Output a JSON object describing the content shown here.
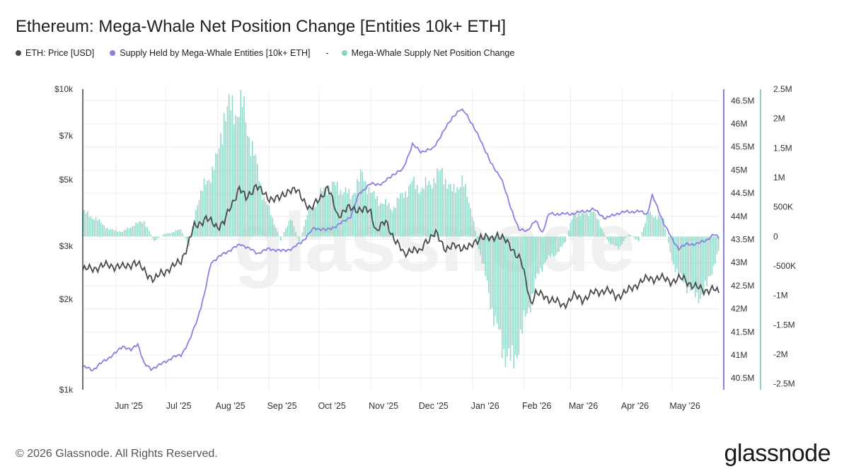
{
  "title": "Ethereum: Mega-Whale Net Position Change [Entities 10k+ ETH]",
  "legend": [
    {
      "label": "ETH: Price [USD]",
      "color": "#4a4a4a"
    },
    {
      "label": "Supply Held by Mega-Whale Entities [10k+ ETH]",
      "color": "#8b7fe0"
    },
    {
      "label": "Mega-Whale Supply Net Position Change",
      "color": "#86d6c4"
    }
  ],
  "legend_dash": "-",
  "footer": "© 2026 Glassnode. All Rights Reserved.",
  "brand": "glassnode",
  "watermark": "glassnode",
  "chart_data": {
    "type": "line",
    "x_ticks": [
      "Jun '25",
      "Jul '25",
      "Aug '25",
      "Sep '25",
      "Oct '25",
      "Nov '25",
      "Dec '25",
      "Jan '26",
      "Feb '26",
      "Mar '26",
      "Apr '26",
      "May '26"
    ],
    "y_left": {
      "scale": "log",
      "range": [
        1000,
        10000
      ],
      "ticks": [
        1000,
        2000,
        3000,
        5000,
        7000,
        10000
      ],
      "tick_labels": [
        "$1k",
        "$2k",
        "$3k",
        "$5k",
        "$7k",
        "$10k"
      ]
    },
    "y_right1": {
      "range": [
        40250000,
        46750000
      ],
      "ticks": [
        40500000,
        41000000,
        41500000,
        42000000,
        42500000,
        43000000,
        43500000,
        44000000,
        44500000,
        45000000,
        45500000,
        46000000,
        46500000
      ],
      "tick_labels": [
        "40.5M",
        "41M",
        "41.5M",
        "42M",
        "42.5M",
        "43M",
        "43.5M",
        "44M",
        "44.5M",
        "45M",
        "45.5M",
        "46M",
        "46.5M"
      ]
    },
    "y_right2": {
      "range": [
        -2600000,
        2500000
      ],
      "ticks": [
        -2500000,
        -2000000,
        -1500000,
        -1000000,
        -500000,
        0,
        500000,
        1000000,
        1500000,
        2000000,
        2500000
      ],
      "tick_labels": [
        "-2.5M",
        "-2M",
        "-1.5M",
        "-1M",
        "-500K",
        "0",
        "500K",
        "1M",
        "1.5M",
        "2M",
        "2.5M"
      ]
    },
    "x_domain": {
      "start": "2025-05-12",
      "end": "2026-05-29",
      "tick_dates": [
        "2025-06-01",
        "2025-07-01",
        "2025-08-01",
        "2025-09-01",
        "2025-10-01",
        "2025-11-01",
        "2025-12-01",
        "2026-01-01",
        "2026-02-01",
        "2026-03-01",
        "2026-04-01",
        "2026-05-01"
      ]
    },
    "grid": true,
    "legend_position": "top-left",
    "series": [
      {
        "name": "ETH: Price [USD]",
        "axis": "left",
        "style": "line",
        "color": "#4a4a4a",
        "points": [
          [
            "2025-05-12",
            2500
          ],
          [
            "2025-05-20",
            2550
          ],
          [
            "2025-05-28",
            2600
          ],
          [
            "2025-06-05",
            2550
          ],
          [
            "2025-06-12",
            2650
          ],
          [
            "2025-06-18",
            2500
          ],
          [
            "2025-06-24",
            2300
          ],
          [
            "2025-06-28",
            2450
          ],
          [
            "2025-07-05",
            2550
          ],
          [
            "2025-07-10",
            2700
          ],
          [
            "2025-07-14",
            3000
          ],
          [
            "2025-07-18",
            3500
          ],
          [
            "2025-07-25",
            3700
          ],
          [
            "2025-08-01",
            3500
          ],
          [
            "2025-08-05",
            3600
          ],
          [
            "2025-08-10",
            4200
          ],
          [
            "2025-08-14",
            4700
          ],
          [
            "2025-08-18",
            4300
          ],
          [
            "2025-08-24",
            4800
          ],
          [
            "2025-08-28",
            4500
          ],
          [
            "2025-09-01",
            4350
          ],
          [
            "2025-09-07",
            4300
          ],
          [
            "2025-09-13",
            4650
          ],
          [
            "2025-09-18",
            4550
          ],
          [
            "2025-09-23",
            4200
          ],
          [
            "2025-09-26",
            3950
          ],
          [
            "2025-10-02",
            4400
          ],
          [
            "2025-10-06",
            4700
          ],
          [
            "2025-10-10",
            4100
          ],
          [
            "2025-10-12",
            3800
          ],
          [
            "2025-10-18",
            4000
          ],
          [
            "2025-10-25",
            4000
          ],
          [
            "2025-11-01",
            3900
          ],
          [
            "2025-11-04",
            3400
          ],
          [
            "2025-11-10",
            3600
          ],
          [
            "2025-11-15",
            3200
          ],
          [
            "2025-11-21",
            2800
          ],
          [
            "2025-11-25",
            2950
          ],
          [
            "2025-12-01",
            2850
          ],
          [
            "2025-12-03",
            3100
          ],
          [
            "2025-12-10",
            3300
          ],
          [
            "2025-12-16",
            2950
          ],
          [
            "2025-12-22",
            3000
          ],
          [
            "2025-12-31",
            2970
          ],
          [
            "2026-01-06",
            3250
          ],
          [
            "2026-01-12",
            3150
          ],
          [
            "2026-01-16",
            3300
          ],
          [
            "2026-01-20",
            3150
          ],
          [
            "2026-01-25",
            2950
          ],
          [
            "2026-01-30",
            2700
          ],
          [
            "2026-02-02",
            2300
          ],
          [
            "2026-02-05",
            1950
          ],
          [
            "2026-02-08",
            2100
          ],
          [
            "2026-02-12",
            2050
          ],
          [
            "2026-02-18",
            2000
          ],
          [
            "2026-02-24",
            1900
          ],
          [
            "2026-03-03",
            2050
          ],
          [
            "2026-03-08",
            2000
          ],
          [
            "2026-03-15",
            2100
          ],
          [
            "2026-03-22",
            2150
          ],
          [
            "2026-03-28",
            2050
          ],
          [
            "2026-04-03",
            2100
          ],
          [
            "2026-04-10",
            2250
          ],
          [
            "2026-04-17",
            2350
          ],
          [
            "2026-04-24",
            2350
          ],
          [
            "2026-05-01",
            2300
          ],
          [
            "2026-05-08",
            2350
          ],
          [
            "2026-05-14",
            2200
          ],
          [
            "2026-05-20",
            2150
          ],
          [
            "2026-05-26",
            2150
          ],
          [
            "2026-05-29",
            2100
          ]
        ]
      },
      {
        "name": "Supply Held by Mega-Whale Entities [10k+ ETH]",
        "axis": "right1",
        "style": "line",
        "color": "#8b7fe0",
        "points": [
          [
            "2025-05-12",
            40750000
          ],
          [
            "2025-05-18",
            40680000
          ],
          [
            "2025-05-24",
            40850000
          ],
          [
            "2025-06-01",
            41050000
          ],
          [
            "2025-06-05",
            41200000
          ],
          [
            "2025-06-10",
            41100000
          ],
          [
            "2025-06-14",
            41250000
          ],
          [
            "2025-06-18",
            40800000
          ],
          [
            "2025-06-22",
            40700000
          ],
          [
            "2025-06-28",
            40800000
          ],
          [
            "2025-07-05",
            40950000
          ],
          [
            "2025-07-10",
            41000000
          ],
          [
            "2025-07-15",
            41300000
          ],
          [
            "2025-07-20",
            41800000
          ],
          [
            "2025-07-24",
            42300000
          ],
          [
            "2025-07-28",
            43000000
          ],
          [
            "2025-08-05",
            43200000
          ],
          [
            "2025-08-15",
            43400000
          ],
          [
            "2025-08-25",
            43200000
          ],
          [
            "2025-09-01",
            43300000
          ],
          [
            "2025-09-08",
            43250000
          ],
          [
            "2025-09-15",
            43300000
          ],
          [
            "2025-09-22",
            43500000
          ],
          [
            "2025-09-28",
            43750000
          ],
          [
            "2025-10-05",
            43700000
          ],
          [
            "2025-10-12",
            43800000
          ],
          [
            "2025-10-20",
            44000000
          ],
          [
            "2025-10-25",
            44500000
          ],
          [
            "2025-11-01",
            44700000
          ],
          [
            "2025-11-08",
            44700000
          ],
          [
            "2025-11-14",
            44900000
          ],
          [
            "2025-11-20",
            45000000
          ],
          [
            "2025-11-26",
            45550000
          ],
          [
            "2025-12-01",
            45400000
          ],
          [
            "2025-12-08",
            45450000
          ],
          [
            "2025-12-15",
            45850000
          ],
          [
            "2025-12-20",
            46150000
          ],
          [
            "2025-12-25",
            46300000
          ],
          [
            "2025-12-28",
            46250000
          ],
          [
            "2026-01-02",
            45900000
          ],
          [
            "2026-01-06",
            45650000
          ],
          [
            "2026-01-12",
            45150000
          ],
          [
            "2026-01-18",
            44850000
          ],
          [
            "2026-01-24",
            44200000
          ],
          [
            "2026-01-29",
            43700000
          ],
          [
            "2026-02-03",
            43700000
          ],
          [
            "2026-02-08",
            43900000
          ],
          [
            "2026-02-12",
            43650000
          ],
          [
            "2026-02-16",
            44050000
          ],
          [
            "2026-02-22",
            44050000
          ],
          [
            "2026-03-01",
            44050000
          ],
          [
            "2026-03-08",
            44100000
          ],
          [
            "2026-03-15",
            44150000
          ],
          [
            "2026-03-22",
            43950000
          ],
          [
            "2026-03-28",
            44050000
          ],
          [
            "2026-04-04",
            44100000
          ],
          [
            "2026-04-12",
            44100000
          ],
          [
            "2026-04-16",
            44050000
          ],
          [
            "2026-04-19",
            44450000
          ],
          [
            "2026-04-22",
            44200000
          ],
          [
            "2026-04-26",
            43850000
          ],
          [
            "2026-05-01",
            43500000
          ],
          [
            "2026-05-05",
            43300000
          ],
          [
            "2026-05-10",
            43400000
          ],
          [
            "2026-05-16",
            43400000
          ],
          [
            "2026-05-22",
            43500000
          ],
          [
            "2026-05-26",
            43600000
          ],
          [
            "2026-05-29",
            43550000
          ]
        ]
      },
      {
        "name": "Mega-Whale Supply Net Position Change",
        "axis": "right2",
        "style": "bar",
        "color": "#86d6c4",
        "points": [
          [
            "2025-05-12",
            420000
          ],
          [
            "2025-05-20",
            300000
          ],
          [
            "2025-05-28",
            120000
          ],
          [
            "2025-06-05",
            80000
          ],
          [
            "2025-06-12",
            200000
          ],
          [
            "2025-06-18",
            260000
          ],
          [
            "2025-06-24",
            -80000
          ],
          [
            "2025-06-30",
            40000
          ],
          [
            "2025-07-05",
            70000
          ],
          [
            "2025-07-10",
            120000
          ],
          [
            "2025-07-15",
            -150000
          ],
          [
            "2025-07-20",
            600000
          ],
          [
            "2025-07-25",
            900000
          ],
          [
            "2025-08-01",
            1300000
          ],
          [
            "2025-08-05",
            2100000
          ],
          [
            "2025-08-10",
            2150000
          ],
          [
            "2025-08-16",
            2200000
          ],
          [
            "2025-08-22",
            1500000
          ],
          [
            "2025-08-28",
            750000
          ],
          [
            "2025-09-03",
            300000
          ],
          [
            "2025-09-08",
            -60000
          ],
          [
            "2025-09-14",
            330000
          ],
          [
            "2025-09-19",
            -100000
          ],
          [
            "2025-09-25",
            450000
          ],
          [
            "2025-09-30",
            600000
          ],
          [
            "2025-10-05",
            850000
          ],
          [
            "2025-10-12",
            850000
          ],
          [
            "2025-10-20",
            680000
          ],
          [
            "2025-10-27",
            1050000
          ],
          [
            "2025-11-02",
            700000
          ],
          [
            "2025-11-08",
            580000
          ],
          [
            "2025-11-14",
            480000
          ],
          [
            "2025-11-20",
            700000
          ],
          [
            "2025-11-26",
            900000
          ],
          [
            "2025-12-02",
            800000
          ],
          [
            "2025-12-08",
            950000
          ],
          [
            "2025-12-14",
            1100000
          ],
          [
            "2025-12-20",
            750000
          ],
          [
            "2025-12-26",
            950000
          ],
          [
            "2026-01-01",
            400000
          ],
          [
            "2026-01-05",
            -200000
          ],
          [
            "2026-01-10",
            -800000
          ],
          [
            "2026-01-15",
            -1500000
          ],
          [
            "2026-01-20",
            -1900000
          ],
          [
            "2026-01-25",
            -2200000
          ],
          [
            "2026-01-30",
            -1700000
          ],
          [
            "2026-02-04",
            -1200000
          ],
          [
            "2026-02-09",
            -700000
          ],
          [
            "2026-02-14",
            -400000
          ],
          [
            "2026-02-20",
            -300000
          ],
          [
            "2026-02-26",
            -100000
          ],
          [
            "2026-03-03",
            400000
          ],
          [
            "2026-03-08",
            350000
          ],
          [
            "2026-03-14",
            450000
          ],
          [
            "2026-03-18",
            250000
          ],
          [
            "2026-03-24",
            -100000
          ],
          [
            "2026-03-30",
            -200000
          ],
          [
            "2026-04-05",
            50000
          ],
          [
            "2026-04-11",
            -80000
          ],
          [
            "2026-04-17",
            400000
          ],
          [
            "2026-04-21",
            350000
          ],
          [
            "2026-04-26",
            280000
          ],
          [
            "2026-05-01",
            -400000
          ],
          [
            "2026-05-06",
            -700000
          ],
          [
            "2026-05-11",
            -850000
          ],
          [
            "2026-05-16",
            -1050000
          ],
          [
            "2026-05-22",
            -850000
          ],
          [
            "2026-05-27",
            -400000
          ],
          [
            "2026-05-29",
            -250000
          ]
        ]
      }
    ]
  }
}
